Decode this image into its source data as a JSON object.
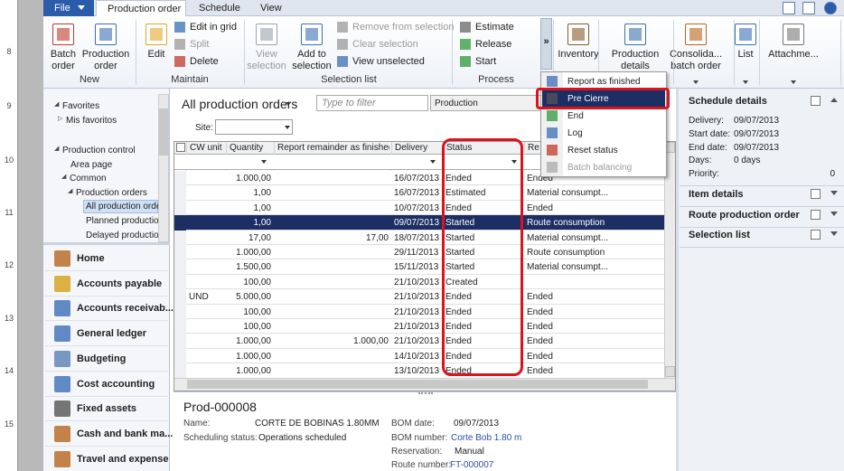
{
  "ruler": [
    "8",
    "9",
    "10",
    "11",
    "12",
    "13",
    "14",
    "15"
  ],
  "menu_tabs": [
    "File",
    "Production order",
    "Schedule",
    "View"
  ],
  "ribbon": {
    "groups": [
      "New",
      "Maintain",
      "Selection list",
      "Process"
    ],
    "large": [
      "Batch\norder",
      "Production\norder",
      "Edit",
      "View\nselection",
      "Add to\nselection",
      "Inventory",
      "Production\ndetails",
      "Consolida...\nbatch order",
      "List",
      "Attachme..."
    ],
    "small": [
      "Edit in grid",
      "Split",
      "Delete",
      "Remove from selection",
      "Clear selection",
      "View unselected",
      "Estimate",
      "Release",
      "Start"
    ],
    "overflow": "»"
  },
  "dropdown": [
    "Report as finished",
    "Pre Cierre",
    "End",
    "Log",
    "Reset status",
    "Batch balancing"
  ],
  "navigation": {
    "tree": [
      "Favorites",
      "Mis favoritos",
      "Production control",
      "Area page",
      "Common",
      "Production orders",
      "All production order",
      "Planned productio.",
      "Delayed productio."
    ],
    "modules": [
      "Home",
      "Accounts payable",
      "Accounts receivab...",
      "General ledger",
      "Budgeting",
      "Cost accounting",
      "Fixed assets",
      "Cash and bank ma...",
      "Travel and expense"
    ]
  },
  "grid": {
    "title": "All production orders",
    "filter_placeholder": "Type to filter",
    "filter_field": "Production",
    "site_label": "Site:",
    "columns": [
      "CW unit",
      "Quantity",
      "Report remainder as finished",
      "Delivery",
      "Status",
      "Re"
    ],
    "rows": [
      [
        null,
        "1.000,00",
        null,
        "16/07/2013",
        "Ended",
        "Ended"
      ],
      [
        null,
        "1,00",
        null,
        "16/07/2013",
        "Estimated",
        "Material consumpt..."
      ],
      [
        null,
        "1,00",
        null,
        "10/07/2013",
        "Ended",
        "Ended"
      ],
      [
        null,
        "1,00",
        null,
        "09/07/2013",
        "Started",
        "Route consumption"
      ],
      [
        null,
        "17,00",
        "17,00",
        "18/07/2013",
        "Started",
        "Material consumpt..."
      ],
      [
        null,
        "1.000,00",
        null,
        "29/11/2013",
        "Started",
        "Route consumption"
      ],
      [
        null,
        "1.500,00",
        null,
        "15/11/2013",
        "Started",
        "Material consumpt..."
      ],
      [
        null,
        "100,00",
        null,
        "21/10/2013",
        "Created",
        null
      ],
      [
        "UND",
        "5.000,00",
        null,
        "21/10/2013",
        "Ended",
        "Ended"
      ],
      [
        null,
        "100,00",
        null,
        "21/10/2013",
        "Ended",
        "Ended"
      ],
      [
        null,
        "100,00",
        null,
        "21/10/2013",
        "Ended",
        "Ended"
      ],
      [
        null,
        "1.000,00",
        "1.000,00",
        "21/10/2013",
        "Ended",
        "Ended"
      ],
      [
        null,
        "1.000,00",
        null,
        "14/10/2013",
        "Ended",
        "Ended"
      ],
      [
        null,
        "1.000,00",
        null,
        "13/10/2013",
        "Ended",
        "Ended"
      ]
    ]
  },
  "details": {
    "id": "Prod-000008",
    "fields": [
      {
        "label": "Name:",
        "value": "CORTE DE BOBINAS 1.80MM"
      },
      {
        "label": "Scheduling status:",
        "value": "Operations scheduled"
      },
      {
        "label": "BOM date:",
        "value": "09/07/2013"
      },
      {
        "label": "BOM number:",
        "value": "Corte Bob 1.80 m"
      },
      {
        "label": "Reservation:",
        "value": "Manual"
      },
      {
        "label": "Route number:",
        "value": "FT-000007"
      }
    ]
  },
  "factbox": {
    "title": "Schedule details",
    "fields": [
      {
        "label": "Delivery:",
        "value": "09/07/2013"
      },
      {
        "label": "Start date:",
        "value": "09/07/2013"
      },
      {
        "label": "End date:",
        "value": "09/07/2013"
      },
      {
        "label": "Days:",
        "value": "0 days"
      },
      {
        "label": "Priority:",
        "value": "0"
      }
    ],
    "sections": [
      "Item details",
      "Route production order",
      "Selection list"
    ]
  }
}
